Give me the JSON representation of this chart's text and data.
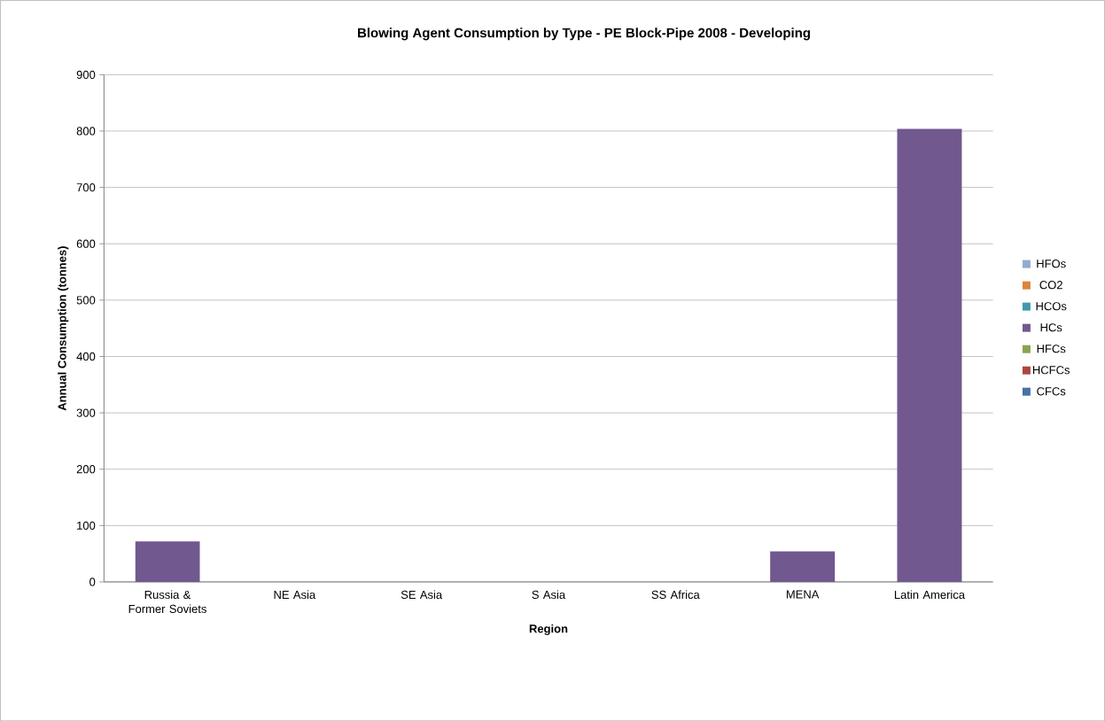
{
  "chart_data": {
    "type": "bar",
    "stacked": true,
    "title": "Blowing Agent Consumption by Type - PE Block-Pipe 2008 - Developing",
    "xlabel": "Region",
    "ylabel": "Annual Consumption (tonnes)",
    "categories": [
      "Russia & Former Soviets",
      "NE Asia",
      "SE Asia",
      "S Asia",
      "SS Africa",
      "MENA",
      "Latin America"
    ],
    "series": [
      {
        "name": "CFCs",
        "color": "#4572a7",
        "values": [
          0,
          0,
          0,
          0,
          0,
          0,
          0
        ]
      },
      {
        "name": "HCFCs",
        "color": "#aa4643",
        "values": [
          0,
          0,
          0,
          0,
          0,
          0,
          0
        ]
      },
      {
        "name": "HFCs",
        "color": "#89a54e",
        "values": [
          0,
          0,
          0,
          0,
          0,
          0,
          0
        ]
      },
      {
        "name": "HCs",
        "color": "#71588f",
        "values": [
          72,
          0,
          0,
          0,
          0,
          54,
          804
        ]
      },
      {
        "name": "HCOs",
        "color": "#4198af",
        "values": [
          0,
          0,
          0,
          0,
          0,
          0,
          0
        ]
      },
      {
        "name": "CO2",
        "color": "#db843d",
        "values": [
          0,
          0,
          0,
          0,
          0,
          0,
          0
        ]
      },
      {
        "name": "HFOs",
        "color": "#93a9cf",
        "values": [
          0,
          0,
          0,
          0,
          0,
          0,
          0
        ]
      }
    ],
    "ylim": [
      0,
      900
    ],
    "yticks": [
      0,
      100,
      200,
      300,
      400,
      500,
      600,
      700,
      800,
      900
    ],
    "grid": "y",
    "legend": "right"
  }
}
